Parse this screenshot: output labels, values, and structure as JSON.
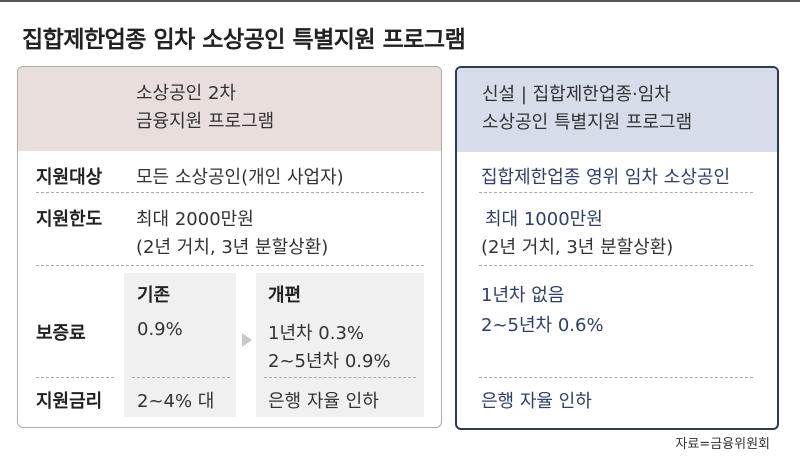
{
  "title": "집합제한업종 임차 소상공인 특별지원 프로그램",
  "left": {
    "header_line1": "소상공인 2차",
    "header_line2": "금융지원 프로그램",
    "rows": {
      "target_label": "지원대상",
      "target_value": "모든 소상공인(개인 사업자)",
      "limit_label": "지원한도",
      "limit_value_line1": "최대 2000만원",
      "limit_value_line2": "(2년 거치, 3년 분할상환)",
      "fee_label": "보증료",
      "fee_before_title": "기존",
      "fee_before_value": "0.9%",
      "fee_after_title": "개편",
      "fee_after_line1": "1년차 0.3%",
      "fee_after_line2": "2~5년차 0.9%",
      "rate_label": "지원금리",
      "rate_before": "2~4% 대",
      "rate_after": "은행 자율 인하"
    }
  },
  "right": {
    "header_line1": "신설 | 집합제한업종·임차",
    "header_line2": "소상공인 특별지원 프로그램",
    "target_value": "집합제한업종 영위 임차 소상공인",
    "limit_value_line1": "최대 1000만원",
    "limit_value_line2": "(2년 거치, 3년 분할상환)",
    "fee_line1": "1년차 없음",
    "fee_line2": "2~5년차 0.6%",
    "rate_value": "은행 자율 인하"
  },
  "source": "자료=금융위원회",
  "colors": {
    "left_header_bg": "#e8dfdc",
    "right_header_bg": "#d7dcea",
    "right_border": "#2e3a55",
    "right_text": "#2e3f6e"
  }
}
